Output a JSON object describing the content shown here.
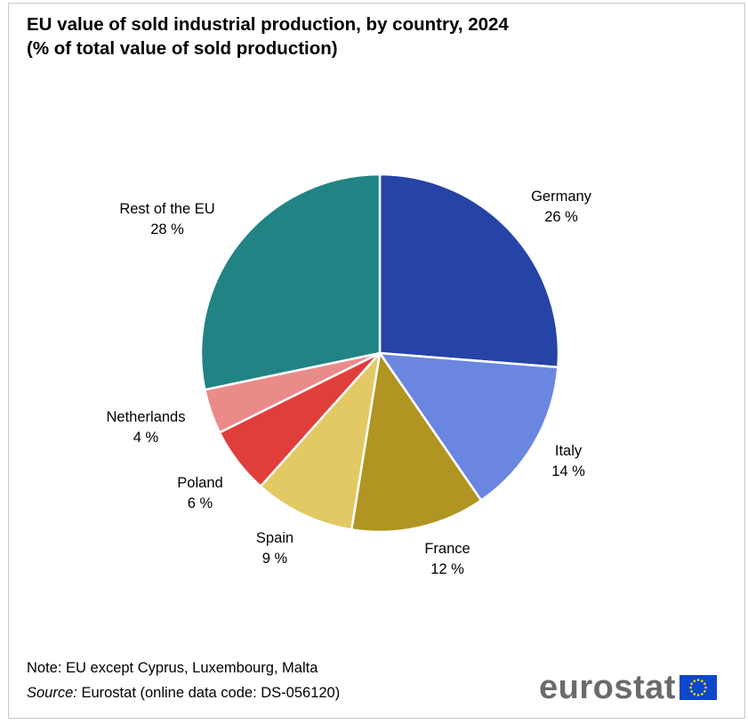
{
  "header": {
    "title_line1": "EU value of sold industrial production, by country, 2024",
    "title_line2": "(% of total value of sold production)"
  },
  "footer": {
    "note": "Note: EU except Cyprus, Luxembourg,  Malta",
    "source_label": "Source:",
    "source_text": " Eurostat (online data code: DS-056120)"
  },
  "logo": {
    "text": "eurostat"
  },
  "colors": {
    "germany": "#2643a6",
    "italy": "#6b86e0",
    "france": "#b09522",
    "spain": "#e2c964",
    "poland": "#e03e3b",
    "netherlands": "#ea8b8a",
    "rest": "#218383",
    "flag_blue": "#0e47cb",
    "flag_star": "#ffdd00"
  },
  "chart_data": {
    "type": "pie",
    "title": "EU value of sold industrial production, by country, 2024",
    "subtitle": "(% of total value of sold production)",
    "unit": "%",
    "start": "12 o'clock",
    "direction": "clockwise",
    "slices": [
      {
        "name": "Germany",
        "value": 26,
        "label": "26 %",
        "color": "#2643a6"
      },
      {
        "name": "Italy",
        "value": 14,
        "label": "14 %",
        "color": "#6b86e0"
      },
      {
        "name": "France",
        "value": 12,
        "label": "12 %",
        "color": "#b09522"
      },
      {
        "name": "Spain",
        "value": 9,
        "label": "9 %",
        "color": "#e2c964"
      },
      {
        "name": "Poland",
        "value": 6,
        "label": "6 %",
        "color": "#e03e3b"
      },
      {
        "name": "Netherlands",
        "value": 4,
        "label": "4 %",
        "color": "#ea8b8a"
      },
      {
        "name": "Rest of the EU",
        "value": 28,
        "label": "28 %",
        "color": "#218383"
      }
    ]
  }
}
